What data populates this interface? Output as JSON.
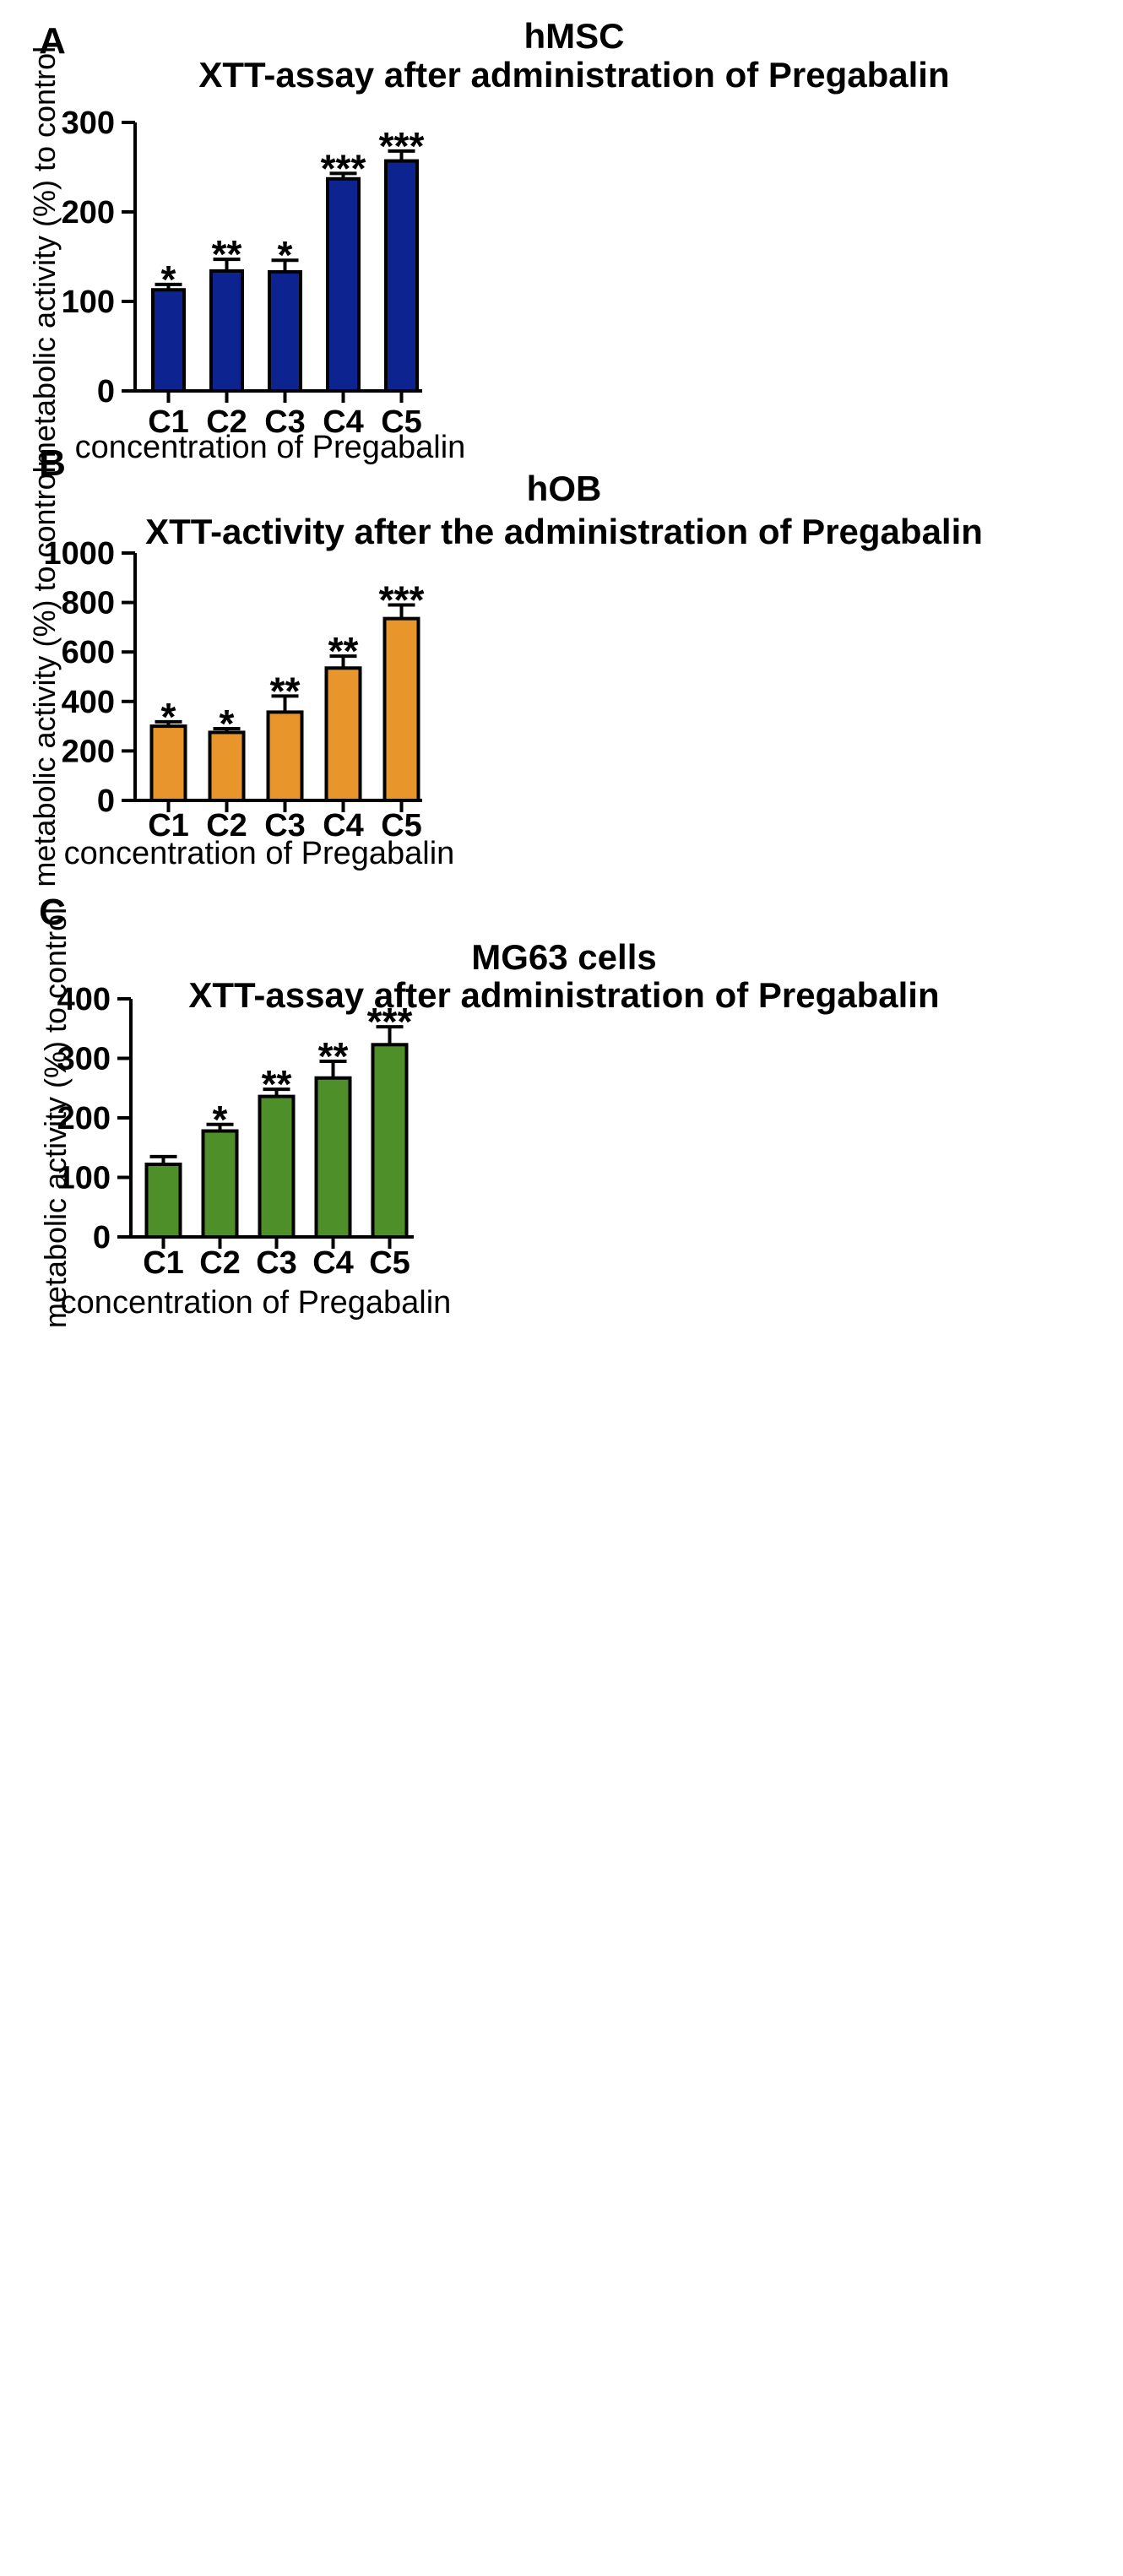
{
  "chart_data": [
    {
      "type": "bar",
      "panel": "A",
      "title_line1": "hMSC",
      "title_line2": "XTT-assay after administration of Pregabalin",
      "xlabel": "concentration of Pregabalin",
      "ylabel": "metabolic activity (%) to control",
      "categories": [
        "C1",
        "C2",
        "C3",
        "C4",
        "C5"
      ],
      "values": [
        113,
        134,
        133,
        237,
        257
      ],
      "errors": [
        6,
        13,
        13,
        6,
        11
      ],
      "significance": [
        "*",
        "**",
        "*",
        "***",
        "***"
      ],
      "ylim": [
        0,
        300
      ],
      "yticks": [
        0,
        100,
        200,
        300
      ],
      "bar_color": "#0d2390"
    },
    {
      "type": "bar",
      "panel": "B",
      "title_line1": "hOB",
      "title_line2": "XTT-activity after the administration of Pregabalin",
      "xlabel": "concentration of Pregabalin",
      "ylabel": "metabolic activity (%) to control",
      "categories": [
        "C1",
        "C2",
        "C3",
        "C4",
        "C5"
      ],
      "values": [
        300,
        275,
        357,
        535,
        735
      ],
      "errors": [
        18,
        15,
        65,
        48,
        55
      ],
      "significance": [
        "*",
        "*",
        "**",
        "**",
        "***"
      ],
      "ylim": [
        0,
        1000
      ],
      "yticks": [
        0,
        200,
        400,
        600,
        800,
        1000
      ],
      "bar_color": "#e8962b"
    },
    {
      "type": "bar",
      "panel": "C",
      "title_line1": "MG63 cells",
      "title_line2": "XTT-assay after administration of Pregabalin",
      "xlabel": "concentration of Pregabalin",
      "ylabel": "metabolic activity (%) to control",
      "categories": [
        "C1",
        "C2",
        "C3",
        "C4",
        "C5"
      ],
      "values": [
        122,
        178,
        236,
        267,
        323
      ],
      "errors": [
        13,
        11,
        12,
        28,
        30
      ],
      "significance": [
        "",
        "*",
        "**",
        "**",
        "***"
      ],
      "ylim": [
        0,
        400
      ],
      "yticks": [
        0,
        100,
        200,
        300,
        400
      ],
      "bar_color": "#4e8f2a"
    }
  ]
}
